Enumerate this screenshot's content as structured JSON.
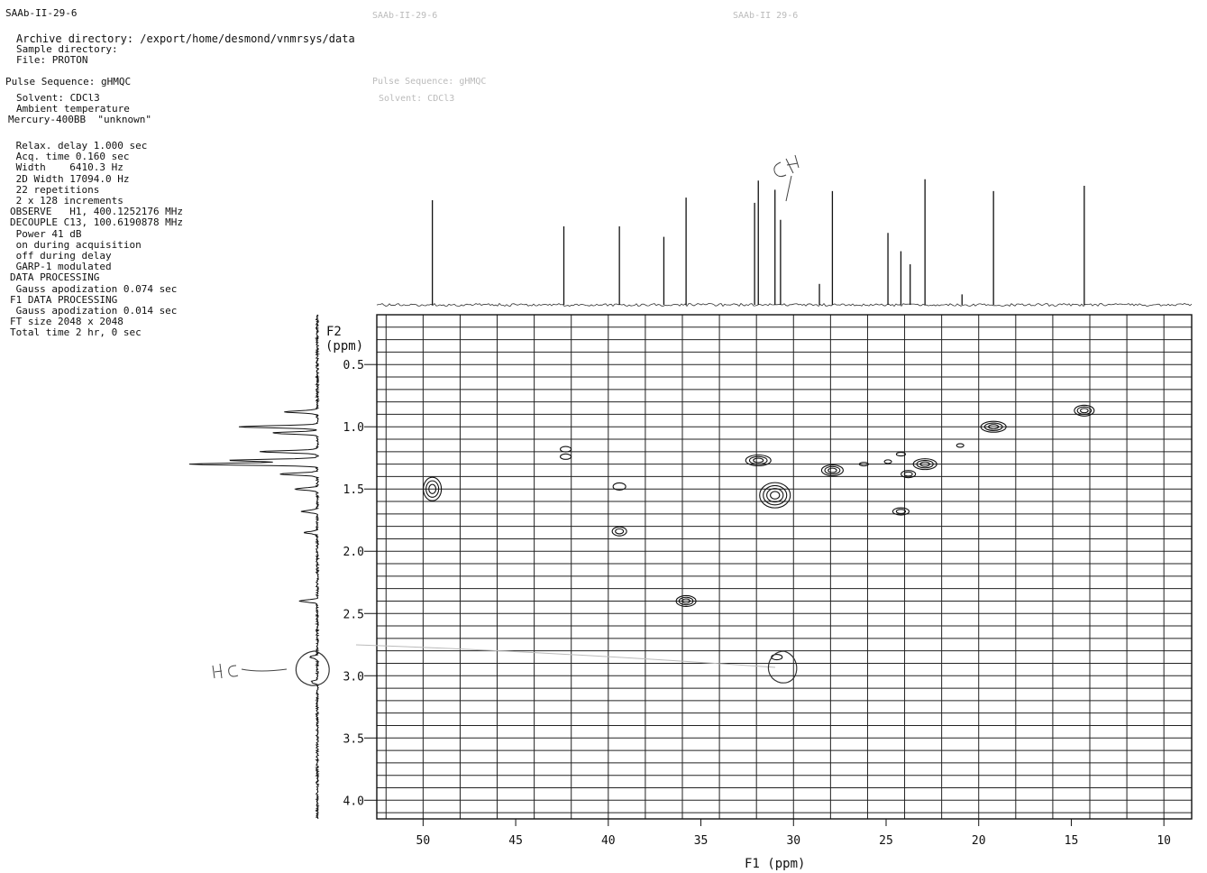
{
  "header": {
    "sample_id": "SAAb-II-29-6",
    "archive_line": "Archive directory: /export/home/desmond/vnmrsys/data",
    "sample_dir_line": "Sample directory:",
    "file_line": "File: PROTON",
    "pulse_line": "Pulse Sequence: gHMQC",
    "solvent_line": "Solvent: CDCl3",
    "temp_line": "Ambient temperature",
    "instrument_line": "Mercury-400BB  \"unknown\"",
    "ghost1": "SAAb-II-29-6",
    "ghost2": "SAAb-II 29-6",
    "ghost3": "Pulse Sequence: gHMQC",
    "ghost4": "Solvent: CDCl3"
  },
  "params": [
    " Relax. delay 1.000 sec",
    " Acq. time 0.160 sec",
    " Width    6410.3 Hz",
    " 2D Width 17094.0 Hz",
    " 22 repetitions",
    " 2 x 128 increments",
    "OBSERVE   H1, 400.1252176 MHz",
    "DECOUPLE C13, 100.6190878 MHz",
    " Power 41 dB",
    " on during acquisition",
    " off during delay",
    " GARP-1 modulated",
    "DATA PROCESSING",
    " Gauss apodization 0.074 sec",
    "F1 DATA PROCESSING",
    " Gauss apodization 0.014 sec",
    "FT size 2048 x 2048",
    "Total time 2 hr, 0 sec"
  ],
  "chart_data": {
    "type": "heatmap",
    "title": "",
    "xlabel": "F1 (ppm)",
    "ylabel_line1": "F2",
    "ylabel_line2": "(ppm)",
    "xlim": [
      52.5,
      8.5
    ],
    "ylim": [
      0.1,
      4.15
    ],
    "x_ticks": [
      50,
      45,
      40,
      35,
      30,
      25,
      20,
      15,
      10
    ],
    "x_tick_labels": [
      "50",
      "45",
      "40",
      "35",
      "30",
      "25",
      "20",
      "15",
      "10"
    ],
    "y_ticks": [
      0.5,
      1.0,
      1.5,
      2.0,
      2.5,
      3.0,
      3.5,
      4.0
    ],
    "y_tick_labels": [
      "0.5",
      "1.0",
      "1.5",
      "2.0",
      "2.5",
      "3.0",
      "3.5",
      "4.0"
    ],
    "grid": true,
    "carbon_peaks": [
      {
        "ppm": 49.5,
        "height": 0.8
      },
      {
        "ppm": 42.4,
        "height": 0.6
      },
      {
        "ppm": 39.4,
        "height": 0.6
      },
      {
        "ppm": 37.0,
        "height": 0.52
      },
      {
        "ppm": 35.8,
        "height": 0.82
      },
      {
        "ppm": 32.1,
        "height": 0.78
      },
      {
        "ppm": 31.9,
        "height": 0.95
      },
      {
        "ppm": 31.0,
        "height": 0.88
      },
      {
        "ppm": 30.7,
        "height": 0.65
      },
      {
        "ppm": 28.6,
        "height": 0.16
      },
      {
        "ppm": 27.9,
        "height": 0.87
      },
      {
        "ppm": 24.9,
        "height": 0.55
      },
      {
        "ppm": 24.2,
        "height": 0.41
      },
      {
        "ppm": 23.7,
        "height": 0.31
      },
      {
        "ppm": 22.9,
        "height": 0.96
      },
      {
        "ppm": 20.9,
        "height": 0.08
      },
      {
        "ppm": 19.2,
        "height": 0.87
      },
      {
        "ppm": 14.3,
        "height": 0.91
      }
    ],
    "proton_peaks": [
      {
        "ppm": 0.88,
        "height": 0.25
      },
      {
        "ppm": 1.0,
        "height": 0.62
      },
      {
        "ppm": 1.05,
        "height": 0.35
      },
      {
        "ppm": 1.2,
        "height": 0.45
      },
      {
        "ppm": 1.27,
        "height": 0.7
      },
      {
        "ppm": 1.3,
        "height": 1.0
      },
      {
        "ppm": 1.38,
        "height": 0.3
      },
      {
        "ppm": 1.5,
        "height": 0.18
      },
      {
        "ppm": 1.68,
        "height": 0.12
      },
      {
        "ppm": 1.85,
        "height": 0.1
      },
      {
        "ppm": 2.4,
        "height": 0.14
      },
      {
        "ppm": 2.85,
        "height": 0.06
      },
      {
        "ppm": 3.05,
        "height": 0.05
      }
    ],
    "cross_peaks": [
      {
        "f1": 49.5,
        "f2": 1.5,
        "rx": 10,
        "ry": 13,
        "rings": 3
      },
      {
        "f1": 42.3,
        "f2": 1.18,
        "rx": 6,
        "ry": 3,
        "rings": 1
      },
      {
        "f1": 42.3,
        "f2": 1.24,
        "rx": 6,
        "ry": 3,
        "rings": 1
      },
      {
        "f1": 39.4,
        "f2": 1.48,
        "rx": 7,
        "ry": 4,
        "rings": 1
      },
      {
        "f1": 39.4,
        "f2": 1.84,
        "rx": 8,
        "ry": 5,
        "rings": 2
      },
      {
        "f1": 35.8,
        "f2": 2.4,
        "rx": 11,
        "ry": 6,
        "rings": 3
      },
      {
        "f1": 31.9,
        "f2": 1.27,
        "rx": 14,
        "ry": 6,
        "rings": 3
      },
      {
        "f1": 31.0,
        "f2": 1.55,
        "rx": 17,
        "ry": 14,
        "rings": 4
      },
      {
        "f1": 30.9,
        "f2": 2.85,
        "rx": 6,
        "ry": 3,
        "rings": 1
      },
      {
        "f1": 27.9,
        "f2": 1.35,
        "rx": 12,
        "ry": 6,
        "rings": 3
      },
      {
        "f1": 26.2,
        "f2": 1.3,
        "rx": 5,
        "ry": 2,
        "rings": 1
      },
      {
        "f1": 24.9,
        "f2": 1.28,
        "rx": 4,
        "ry": 2,
        "rings": 1
      },
      {
        "f1": 24.2,
        "f2": 1.22,
        "rx": 5,
        "ry": 2,
        "rings": 1
      },
      {
        "f1": 24.2,
        "f2": 1.68,
        "rx": 9,
        "ry": 4,
        "rings": 2
      },
      {
        "f1": 23.8,
        "f2": 1.38,
        "rx": 8,
        "ry": 4,
        "rings": 2
      },
      {
        "f1": 22.9,
        "f2": 1.3,
        "rx": 13,
        "ry": 6,
        "rings": 3
      },
      {
        "f1": 21.0,
        "f2": 1.15,
        "rx": 4,
        "ry": 2,
        "rings": 1
      },
      {
        "f1": 19.2,
        "f2": 1.0,
        "rx": 14,
        "ry": 6,
        "rings": 3
      },
      {
        "f1": 14.3,
        "f2": 0.87,
        "rx": 11,
        "ry": 6,
        "rings": 3
      }
    ],
    "handwriting": {
      "annotation_a": "HC",
      "annotation_b": "CH",
      "annotation_c": "HC–CH"
    }
  }
}
